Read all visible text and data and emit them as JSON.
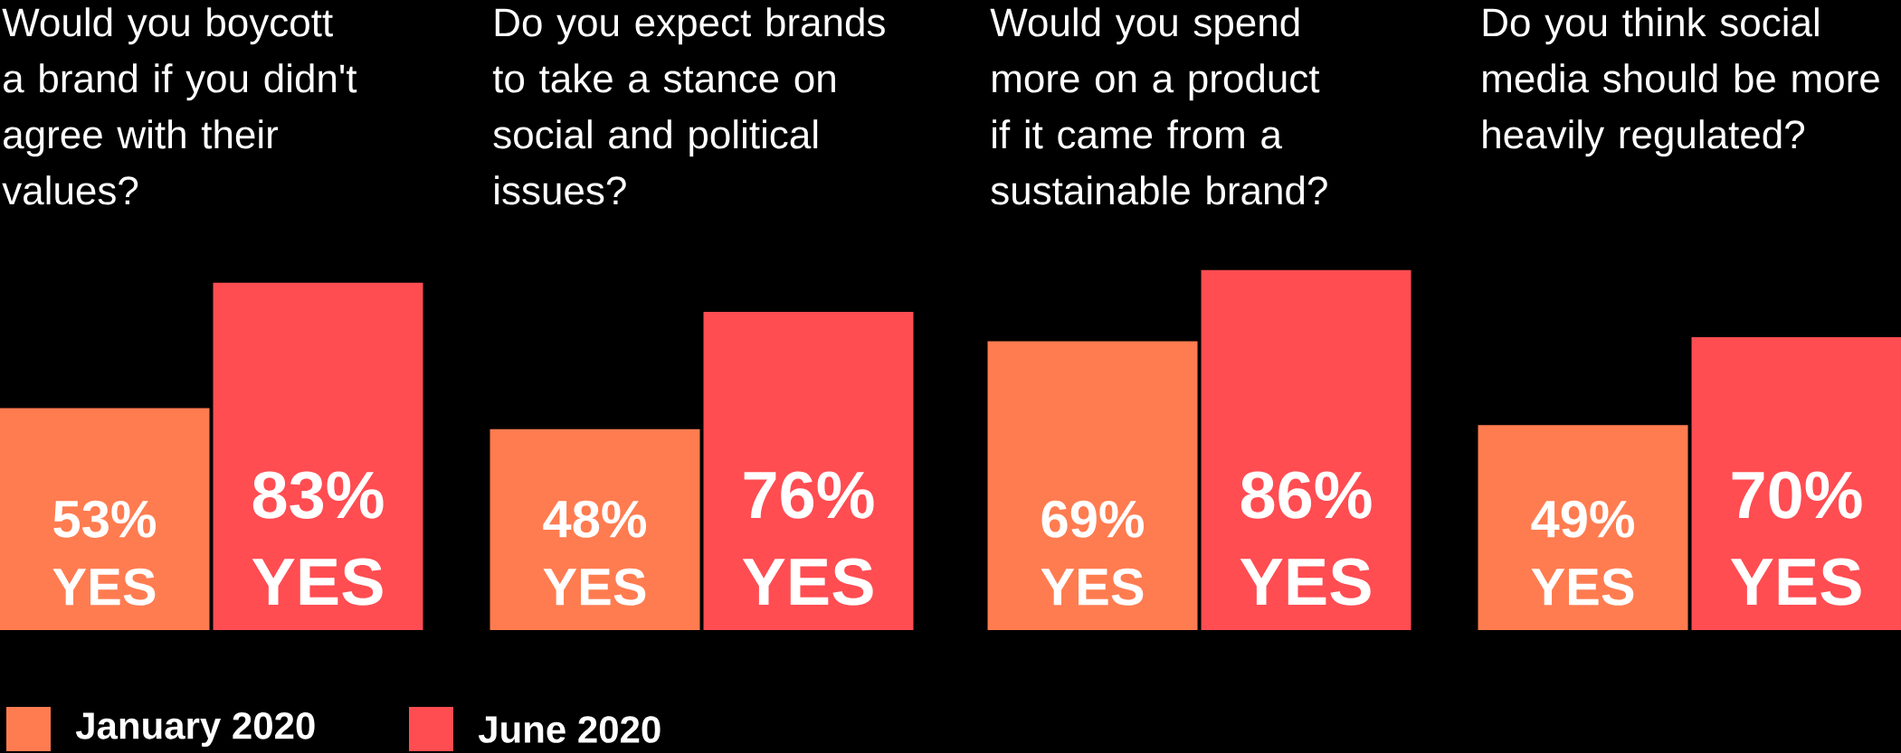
{
  "chart_data": [
    {
      "type": "bar",
      "title": "Would you boycott a brand if you didn't agree with their values?",
      "categories": [
        null
      ],
      "legend": "bottom",
      "series": [
        {
          "name": "January 2020",
          "color": "#ff7c50",
          "values": [
            53
          ],
          "value_labels": [
            "53% YES"
          ]
        },
        {
          "name": "June 2020",
          "color": "#ff4d52",
          "values": [
            83
          ],
          "value_labels": [
            "83% YES"
          ]
        }
      ]
    },
    {
      "type": "bar",
      "title": "Do you expect brands to take a stance on social and political issues?",
      "categories": [
        null
      ],
      "series": [
        {
          "color": "#ff7c50",
          "values": [
            48
          ],
          "value_labels": [
            "48% YES"
          ]
        },
        {
          "color": "#ff4d52",
          "values": [
            76
          ],
          "value_labels": [
            "76% YES"
          ]
        }
      ]
    },
    {
      "type": "bar",
      "title": "Would you spend more on a product if it came from a sustainable brand?",
      "categories": [
        null
      ],
      "series": [
        {
          "color": "#ff7c50",
          "values": [
            69
          ],
          "value_labels": [
            "69% YES"
          ]
        },
        {
          "color": "#ff4d52",
          "values": [
            86
          ],
          "value_labels": [
            "86% YES"
          ]
        }
      ]
    },
    {
      "type": "bar",
      "title": "Do you think social media should be more heavily regulated?",
      "categories": [
        null
      ],
      "series": [
        {
          "color": "#ff7c50",
          "values": [
            49
          ],
          "value_labels": [
            "49% YES"
          ]
        },
        {
          "color": "#ff4d52",
          "values": [
            70
          ],
          "value_labels": [
            "70% YES"
          ]
        }
      ]
    }
  ]
}
